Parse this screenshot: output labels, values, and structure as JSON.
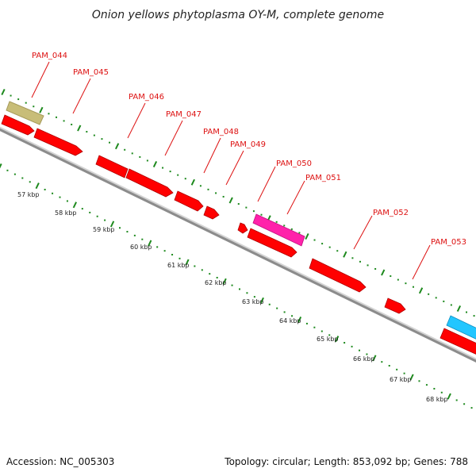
{
  "title": "Onion yellows phytoplasma OY-M, complete genome",
  "footer": {
    "accession": "Accession: NC_005303",
    "summary": "Topology: circular; Length: 853,092 bp; Genes: 788"
  },
  "colors": {
    "cds": "#ff0000",
    "trna": "#c8bd78",
    "rrna": "#ff22aa",
    "misc": "#22c6ff",
    "backbone": "#8c8c8c",
    "ticks": "#1e8a1e",
    "callout": "#dd1111"
  },
  "scale_labels": [
    "57 kbp",
    "58 kbp",
    "59 kbp",
    "60 kbp",
    "61 kbp",
    "62 kbp",
    "63 kbp",
    "64 kbp",
    "65 kbp",
    "66 kbp",
    "67 kbp",
    "68 kbp"
  ],
  "genes": [
    {
      "label": "PAM_044",
      "type": "trna"
    },
    {
      "label": "PAM_045",
      "type": "cds"
    },
    {
      "label": "PAM_046",
      "type": "cds"
    },
    {
      "label": "PAM_047",
      "type": "cds"
    },
    {
      "label": "PAM_048",
      "type": "cds"
    },
    {
      "label": "PAM_049",
      "type": "cds"
    },
    {
      "label": "PAM_050",
      "type": "cds"
    },
    {
      "label": "PAM_051",
      "type": "rrna"
    },
    {
      "label": "PAM_052",
      "type": "cds"
    },
    {
      "label": "PAM_053",
      "type": "cds"
    }
  ]
}
